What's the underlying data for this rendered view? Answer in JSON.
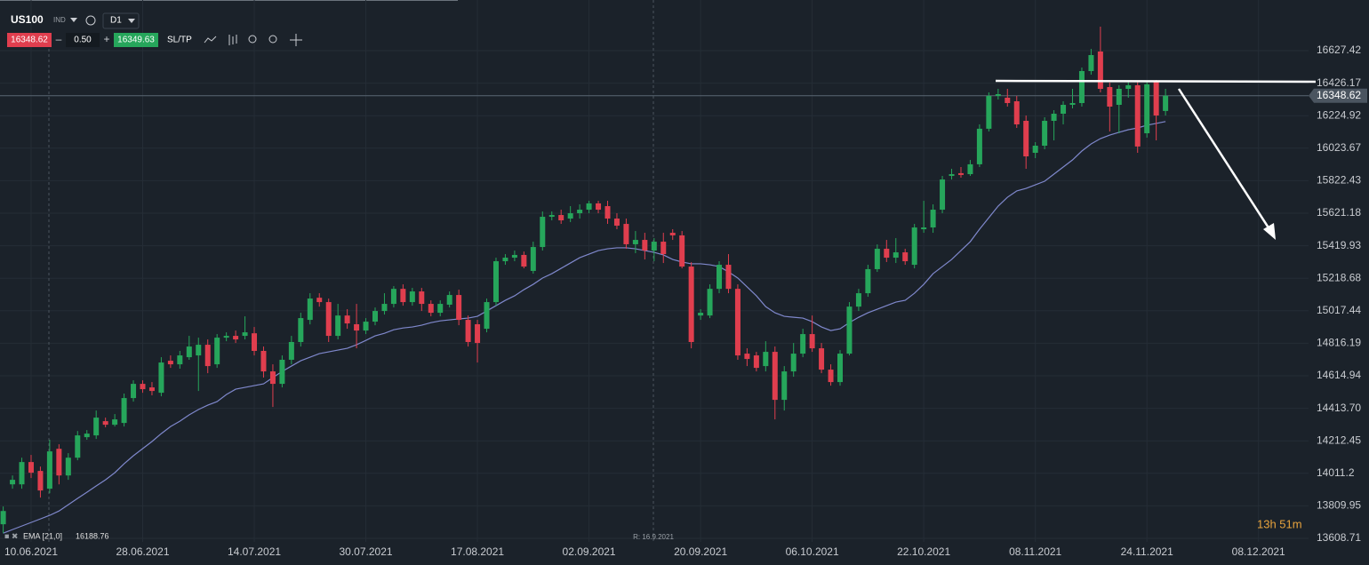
{
  "toolbar": {
    "symbol": "US100",
    "market": "IND",
    "timeframe": "D1",
    "bid": "16348.62",
    "minus": "–",
    "spread": "0.50",
    "plus": "+",
    "ask": "16349.63",
    "sltp": "SL/TP"
  },
  "chart_data": {
    "type": "candlestick",
    "categories": [
      null,
      null,
      null,
      "10.06.2021",
      null,
      null,
      null,
      null,
      null,
      null,
      null,
      null,
      null,
      null,
      null,
      "28.06.2021",
      null,
      null,
      null,
      null,
      null,
      null,
      null,
      null,
      null,
      null,
      null,
      "14.07.2021",
      null,
      null,
      null,
      null,
      null,
      null,
      null,
      null,
      null,
      null,
      null,
      "30.07.2021",
      null,
      null,
      null,
      null,
      null,
      null,
      null,
      null,
      null,
      null,
      null,
      "17.08.2021",
      null,
      null,
      null,
      null,
      null,
      null,
      null,
      null,
      null,
      null,
      null,
      "02.09.2021",
      null,
      null,
      null,
      null,
      null,
      null,
      null,
      null,
      null,
      null,
      null,
      "20.09.2021",
      null,
      null,
      null,
      null,
      null,
      null,
      null,
      null,
      null,
      null,
      null,
      "06.10.2021",
      null,
      null,
      null,
      null,
      null,
      null,
      null,
      null,
      null,
      null,
      null,
      "22.10.2021",
      null,
      null,
      null,
      null,
      null,
      null,
      null,
      null,
      null,
      null,
      null,
      "08.11.2021",
      null,
      null,
      null,
      null,
      null,
      null,
      null,
      null,
      null,
      null,
      null,
      "24.11.2021",
      null,
      null,
      null,
      null,
      null,
      null,
      null,
      null,
      null,
      null,
      null,
      "08.12.2021"
    ],
    "open": [
      13696,
      13943,
      13943,
      14081,
      14026,
      13916,
      14163,
      13998,
      14108,
      14235,
      14246,
      14334,
      14312,
      14323,
      14477,
      14565,
      14543,
      14510,
      14708,
      14686,
      14730,
      14741,
      14807,
      14686,
      14851,
      14862,
      14862,
      14878,
      14769,
      14642,
      14565,
      14714,
      14824,
      14961,
      15098,
      15071,
      14862,
      14988,
      14934,
      14895,
      14950,
      15016,
      15060,
      15153,
      15071,
      15137,
      15060,
      15005,
      15055,
      15115,
      14961,
      14934,
      14906,
      15071,
      15324,
      15346,
      15363,
      15264,
      15412,
      15599,
      15610,
      15588,
      15621,
      15643,
      15682,
      15665,
      15588,
      15555,
      15429,
      15456,
      15390,
      15445,
      15500,
      15484,
      15291,
      14988,
      14988,
      15153,
      15302,
      15153,
      14752,
      14741,
      14675,
      14763,
      14466,
      14642,
      14752,
      14873,
      14785,
      14653,
      14576,
      14752,
      15043,
      15126,
      15275,
      15401,
      15346,
      15379,
      15302,
      15522,
      15533,
      15643,
      15852,
      15869,
      15863,
      15924,
      16144,
      16347,
      16336,
      16314,
      16193,
      15995,
      16039,
      16193,
      16237,
      16292,
      16303,
      16501,
      16622,
      16402,
      16292,
      16391,
      16413,
      16116,
      16435,
      16254,
      null,
      null,
      null,
      null,
      null,
      null,
      null,
      null,
      null,
      null
    ],
    "high": [
      13806,
      13998,
      14108,
      14125,
      14053,
      14219,
      14191,
      14136,
      14273,
      14279,
      14400,
      14356,
      14378,
      14505,
      14587,
      14587,
      14576,
      14730,
      14741,
      14769,
      14862,
      14851,
      14840,
      14873,
      14884,
      14895,
      14983,
      14917,
      14796,
      14686,
      14741,
      14862,
      15005,
      15126,
      15126,
      15093,
      15060,
      15027,
      15060,
      14972,
      15038,
      15126,
      15170,
      15181,
      15159,
      15159,
      15082,
      15082,
      15137,
      15148,
      14988,
      14961,
      15093,
      15346,
      15368,
      15390,
      15384,
      15445,
      15632,
      15632,
      15643,
      15665,
      15676,
      15698,
      15698,
      15698,
      15621,
      15588,
      15511,
      15500,
      15467,
      15500,
      15522,
      15511,
      15318,
      15027,
      15181,
      15324,
      15368,
      15181,
      14785,
      14763,
      14829,
      14796,
      14675,
      14818,
      14906,
      14988,
      14818,
      14686,
      14774,
      15071,
      15153,
      15302,
      15428,
      15456,
      15467,
      15401,
      15555,
      15698,
      15676,
      15852,
      15896,
      15907,
      15951,
      16171,
      16369,
      16391,
      16391,
      16347,
      16226,
      16061,
      16215,
      16259,
      16314,
      16391,
      16523,
      16638,
      16776,
      16430,
      16413,
      16435,
      16435,
      16435,
      16446,
      16391,
      null,
      null,
      null,
      null,
      null,
      null,
      null,
      null,
      null,
      null
    ],
    "low": [
      13641,
      13916,
      13916,
      13982,
      13861,
      13888,
      13943,
      13971,
      14092,
      14219,
      14224,
      14296,
      14301,
      14301,
      14455,
      14510,
      14494,
      14488,
      14664,
      14659,
      14714,
      14521,
      14631,
      14664,
      14829,
      14818,
      14840,
      14741,
      14604,
      14422,
      14543,
      14686,
      14796,
      14933,
      15043,
      14824,
      14840,
      14906,
      14785,
      14873,
      14928,
      14994,
      15038,
      15049,
      15049,
      15016,
      14983,
      14983,
      15038,
      14928,
      14796,
      14697,
      14884,
      15049,
      15302,
      15324,
      15280,
      15247,
      15390,
      15577,
      15555,
      15566,
      15588,
      15621,
      15621,
      15555,
      15522,
      15401,
      15374,
      15335,
      15324,
      15313,
      15456,
      15280,
      14785,
      14961,
      14972,
      15126,
      15126,
      14714,
      14675,
      14642,
      14642,
      14345,
      14400,
      14609,
      14730,
      14763,
      14631,
      14554,
      14554,
      14741,
      15016,
      15104,
      15258,
      15319,
      15313,
      15302,
      15280,
      15500,
      15500,
      15621,
      15830,
      15841,
      15852,
      15907,
      16127,
      16325,
      16281,
      16149,
      15896,
      15962,
      16017,
      16072,
      16171,
      16270,
      16281,
      16479,
      16369,
      16127,
      16116,
      16336,
      15995,
      16089,
      16072,
      16226,
      null,
      null,
      null,
      null,
      null,
      null,
      null,
      null,
      null,
      null
    ],
    "close": [
      13778,
      13971,
      14081,
      14015,
      13905,
      14147,
      13998,
      14108,
      14246,
      14257,
      14356,
      14312,
      14345,
      14477,
      14565,
      14532,
      14521,
      14697,
      14686,
      14741,
      14796,
      14807,
      14675,
      14851,
      14862,
      14840,
      14884,
      14769,
      14642,
      14565,
      14714,
      14824,
      14972,
      15093,
      15071,
      14862,
      14988,
      14939,
      14895,
      14950,
      15016,
      15060,
      15153,
      15071,
      15137,
      15060,
      15005,
      15060,
      15115,
      14961,
      14824,
      14818,
      15071,
      15324,
      15346,
      15363,
      15291,
      15412,
      15599,
      15610,
      15577,
      15621,
      15643,
      15682,
      15643,
      15588,
      15544,
      15429,
      15456,
      15390,
      15445,
      15368,
      15484,
      15291,
      14824,
      15005,
      15153,
      15302,
      15153,
      14741,
      14719,
      14664,
      14763,
      14466,
      14642,
      14752,
      14873,
      14785,
      14653,
      14576,
      14752,
      15043,
      15126,
      15275,
      15401,
      15346,
      15379,
      15324,
      15533,
      15533,
      15643,
      15830,
      15863,
      15858,
      15924,
      16144,
      16347,
      16358,
      16303,
      16171,
      15973,
      16039,
      16193,
      16237,
      16292,
      16303,
      16501,
      16600,
      16391,
      16281,
      16391,
      16413,
      16034,
      16419,
      16226,
      16348.62,
      null,
      null,
      null,
      null,
      null,
      null,
      null,
      null,
      null,
      null
    ],
    "up_color": "#26a65b",
    "down_color": "#e03e4e",
    "ema": {
      "name": "EMA [21,0]",
      "color": "#7f88cc",
      "values": [
        13641,
        13663,
        13685,
        13707,
        13729,
        13751,
        13778,
        13817,
        13856,
        13894,
        13933,
        13971,
        14015,
        14070,
        14120,
        14164,
        14208,
        14257,
        14301,
        14334,
        14373,
        14406,
        14433,
        14455,
        14499,
        14532,
        14543,
        14554,
        14565,
        14604,
        14642,
        14675,
        14708,
        14730,
        14752,
        14763,
        14774,
        14785,
        14807,
        14834,
        14862,
        14878,
        14900,
        14911,
        14917,
        14928,
        14944,
        14955,
        14961,
        14967,
        14972,
        14983,
        15016,
        15049,
        15082,
        15110,
        15148,
        15181,
        15220,
        15247,
        15280,
        15313,
        15346,
        15368,
        15390,
        15401,
        15407,
        15407,
        15401,
        15390,
        15379,
        15363,
        15335,
        15319,
        15308,
        15308,
        15302,
        15291,
        15258,
        15220,
        15165,
        15110,
        15043,
        15005,
        14983,
        14977,
        14972,
        14950,
        14917,
        14895,
        14906,
        14944,
        14977,
        15005,
        15027,
        15049,
        15071,
        15082,
        15126,
        15181,
        15247,
        15291,
        15335,
        15390,
        15445,
        15522,
        15594,
        15665,
        15720,
        15759,
        15775,
        15797,
        15819,
        15863,
        15907,
        15951,
        16006,
        16050,
        16083,
        16105,
        16122,
        16138,
        16149,
        16166,
        16177,
        16188.76,
        null,
        null,
        null,
        null,
        null,
        null,
        null,
        null,
        null,
        null
      ]
    },
    "ylim": [
      13531.73,
      16940.86
    ],
    "yticks": [
      13608.71,
      13809.95,
      14011.2,
      14212.45,
      {
        "value": 14413.7,
        "label": "14413.70"
      },
      14614.94,
      14816.19,
      15017.44,
      15218.68,
      15419.93,
      15621.18,
      15822.43,
      16023.67,
      16224.92,
      16426.17,
      16627.42
    ],
    "grid": true,
    "price_line": 16348.62,
    "crosshair_label": "R: 16.9.2021",
    "timer": "13h 51m"
  }
}
